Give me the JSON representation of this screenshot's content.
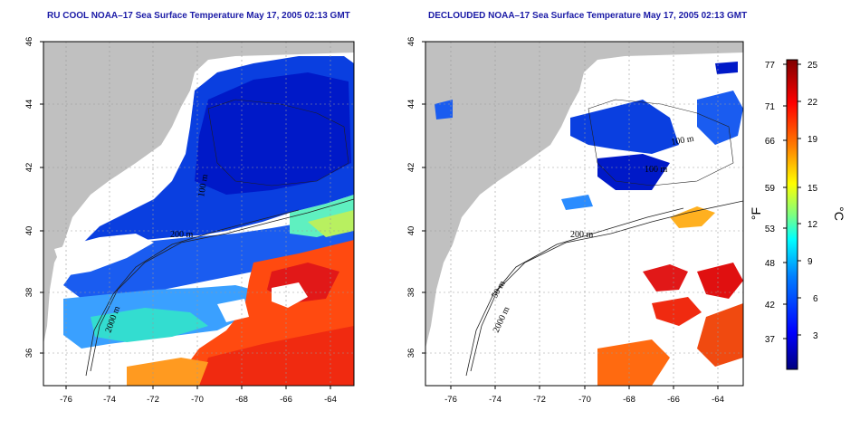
{
  "panels": [
    {
      "title": "RU COOL NOAA–17 Sea Surface Temperature May 17, 2005 02:13 GMT",
      "x_ticks": [
        "-76",
        "-74",
        "-72",
        "-70",
        "-68",
        "-66",
        "-64"
      ],
      "y_ticks": [
        "36",
        "38",
        "40",
        "42",
        "44",
        "46"
      ],
      "contour_labels": [
        "200 m",
        "2000 m",
        "100 m"
      ]
    },
    {
      "title": "DECLOUDED NOAA–17 Sea Surface Temperature May 17, 2005 02:13 GMT",
      "x_ticks": [
        "-76",
        "-74",
        "-72",
        "-70",
        "-68",
        "-66",
        "-64"
      ],
      "y_ticks": [
        "36",
        "38",
        "40",
        "42",
        "44",
        "46"
      ],
      "contour_labels": [
        "200 m",
        "50 m",
        "2000 m",
        "100 m",
        "100 m"
      ]
    }
  ],
  "colorbar": {
    "fahrenheit_ticks": [
      "77",
      "71",
      "66",
      "59",
      "53",
      "48",
      "42",
      "37"
    ],
    "celsius_ticks": [
      "25",
      "22",
      "19",
      "15",
      "12",
      "9",
      "6",
      "3"
    ],
    "fahrenheit_unit": "°F",
    "celsius_unit": "°C",
    "colors": [
      "#00007f",
      "#0000ff",
      "#007fff",
      "#00ffff",
      "#7fff7f",
      "#ffff00",
      "#ff7f00",
      "#ff0000",
      "#7f0000"
    ]
  },
  "colors": {
    "land": "#c0c0c0",
    "cloud": "#ffffff",
    "title": "#1a1aa6"
  }
}
